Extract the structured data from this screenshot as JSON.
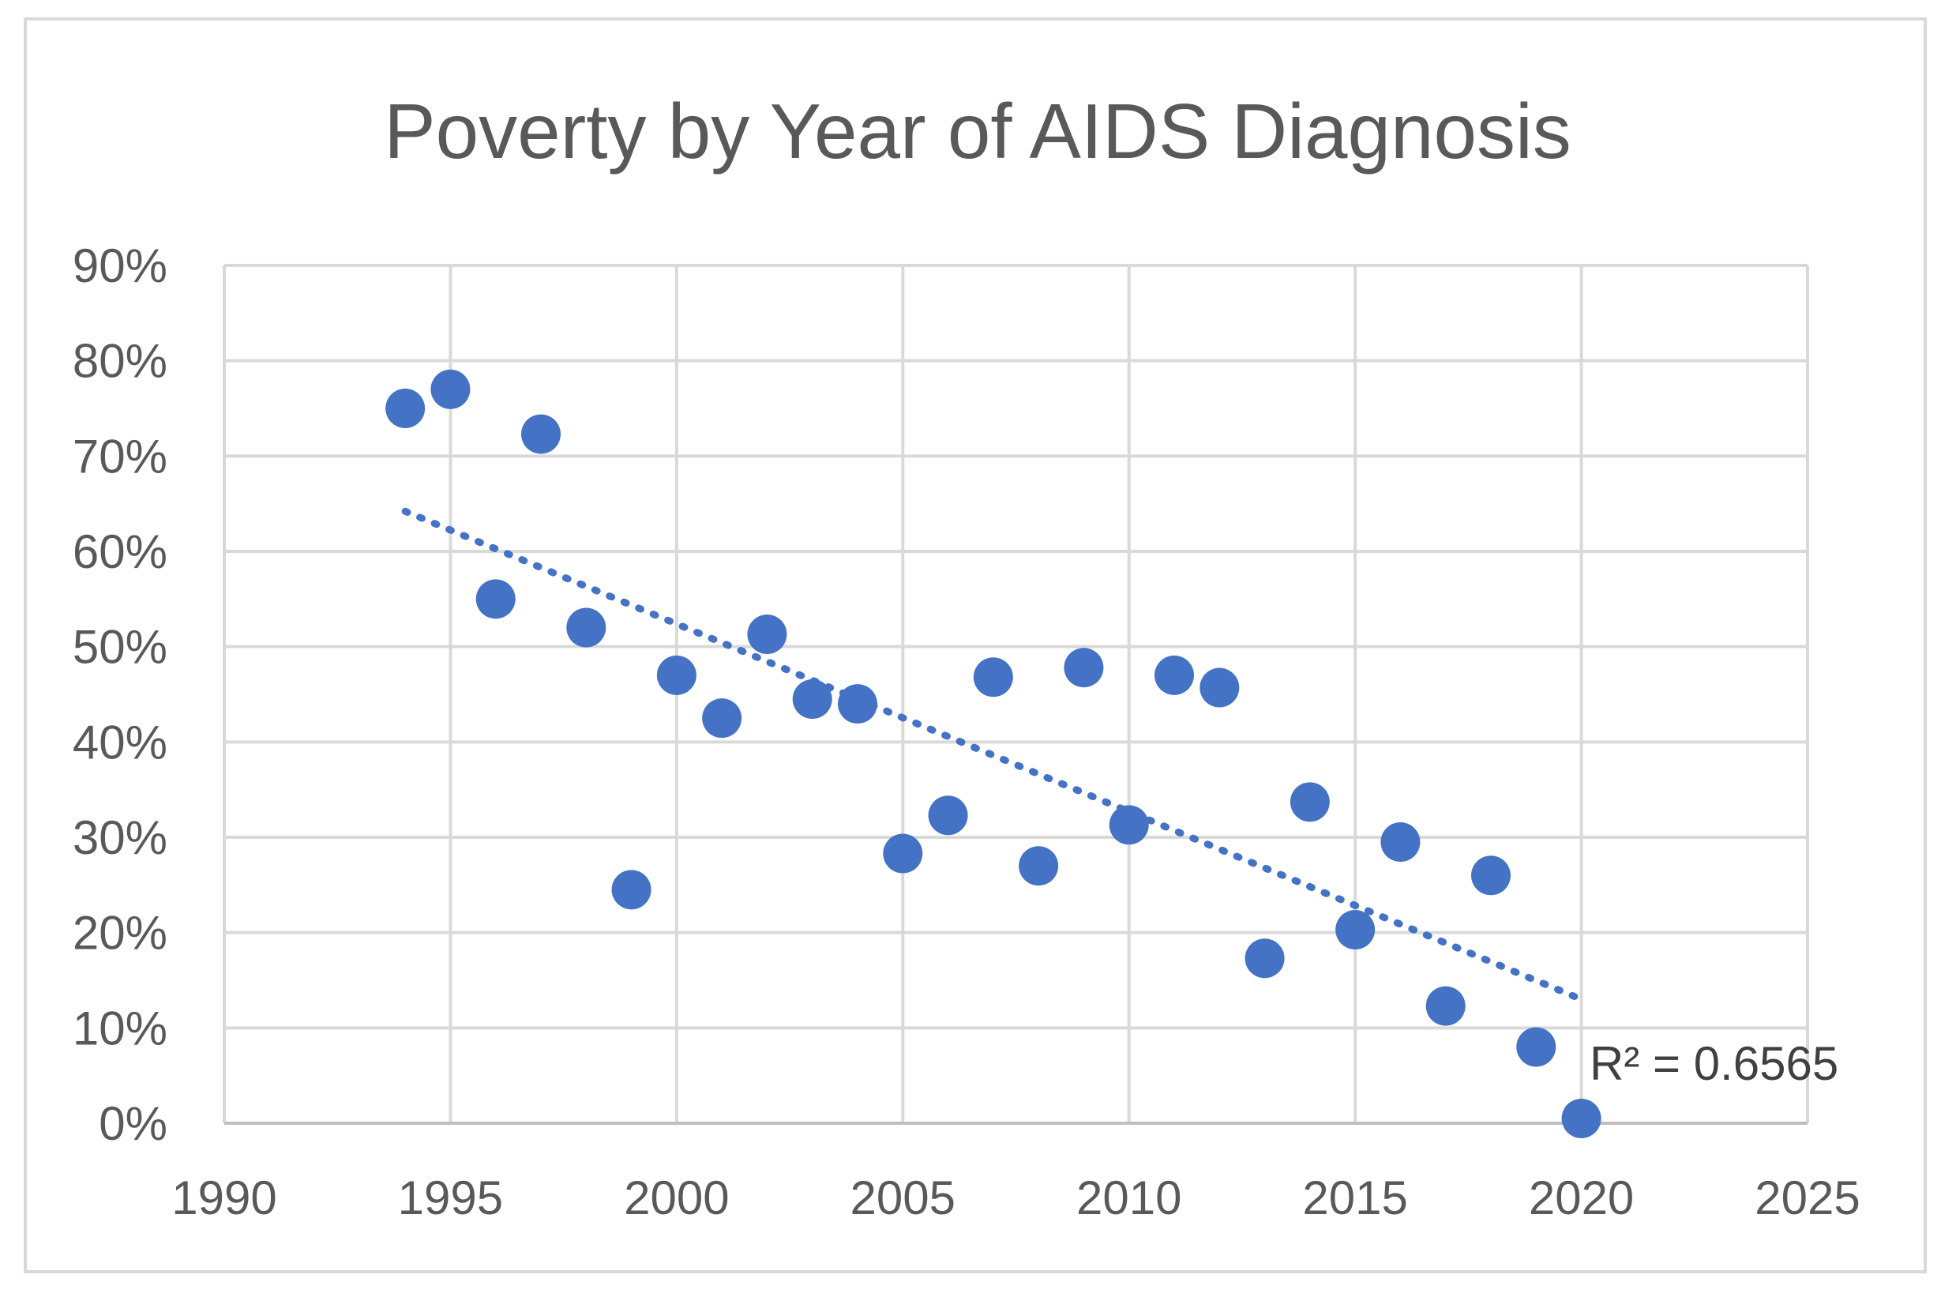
{
  "chart_data": {
    "type": "scatter",
    "title": "Poverty by Year of AIDS Diagnosis",
    "xlabel": "",
    "ylabel": "",
    "xlim": [
      1990,
      2025
    ],
    "ylim": [
      0,
      0.9
    ],
    "x_ticks": [
      1990,
      1995,
      2000,
      2005,
      2010,
      2015,
      2020,
      2025
    ],
    "x_tick_labels": [
      "1990",
      "1995",
      "2000",
      "2005",
      "2010",
      "2015",
      "2020",
      "2025"
    ],
    "y_ticks": [
      0,
      0.1,
      0.2,
      0.3,
      0.4,
      0.5,
      0.6,
      0.7,
      0.8,
      0.9
    ],
    "y_tick_labels": [
      "0%",
      "10%",
      "20%",
      "30%",
      "40%",
      "50%",
      "60%",
      "70%",
      "80%",
      "90%"
    ],
    "grid": true,
    "legend": "none",
    "series": [
      {
        "name": "Poverty",
        "color": "#4472c4",
        "points": [
          {
            "x": 1994,
            "y": 0.75
          },
          {
            "x": 1995,
            "y": 0.77
          },
          {
            "x": 1996,
            "y": 0.55
          },
          {
            "x": 1997,
            "y": 0.723
          },
          {
            "x": 1998,
            "y": 0.52
          },
          {
            "x": 1999,
            "y": 0.245
          },
          {
            "x": 2000,
            "y": 0.47
          },
          {
            "x": 2001,
            "y": 0.425
          },
          {
            "x": 2002,
            "y": 0.513
          },
          {
            "x": 2003,
            "y": 0.445
          },
          {
            "x": 2004,
            "y": 0.44
          },
          {
            "x": 2005,
            "y": 0.283
          },
          {
            "x": 2006,
            "y": 0.323
          },
          {
            "x": 2007,
            "y": 0.468
          },
          {
            "x": 2008,
            "y": 0.27
          },
          {
            "x": 2009,
            "y": 0.478
          },
          {
            "x": 2010,
            "y": 0.313
          },
          {
            "x": 2011,
            "y": 0.47
          },
          {
            "x": 2012,
            "y": 0.457
          },
          {
            "x": 2013,
            "y": 0.173
          },
          {
            "x": 2014,
            "y": 0.337
          },
          {
            "x": 2015,
            "y": 0.203
          },
          {
            "x": 2016,
            "y": 0.295
          },
          {
            "x": 2017,
            "y": 0.123
          },
          {
            "x": 2018,
            "y": 0.26
          },
          {
            "x": 2019,
            "y": 0.08
          },
          {
            "x": 2020,
            "y": 0.005
          }
        ]
      }
    ],
    "trendline": {
      "type": "linear",
      "style": "dotted",
      "color": "#4472c4",
      "x_start": 1994,
      "y_start": 0.642,
      "x_end": 2020,
      "y_end": 0.13,
      "r_squared_label": "R² = 0.6565"
    }
  }
}
